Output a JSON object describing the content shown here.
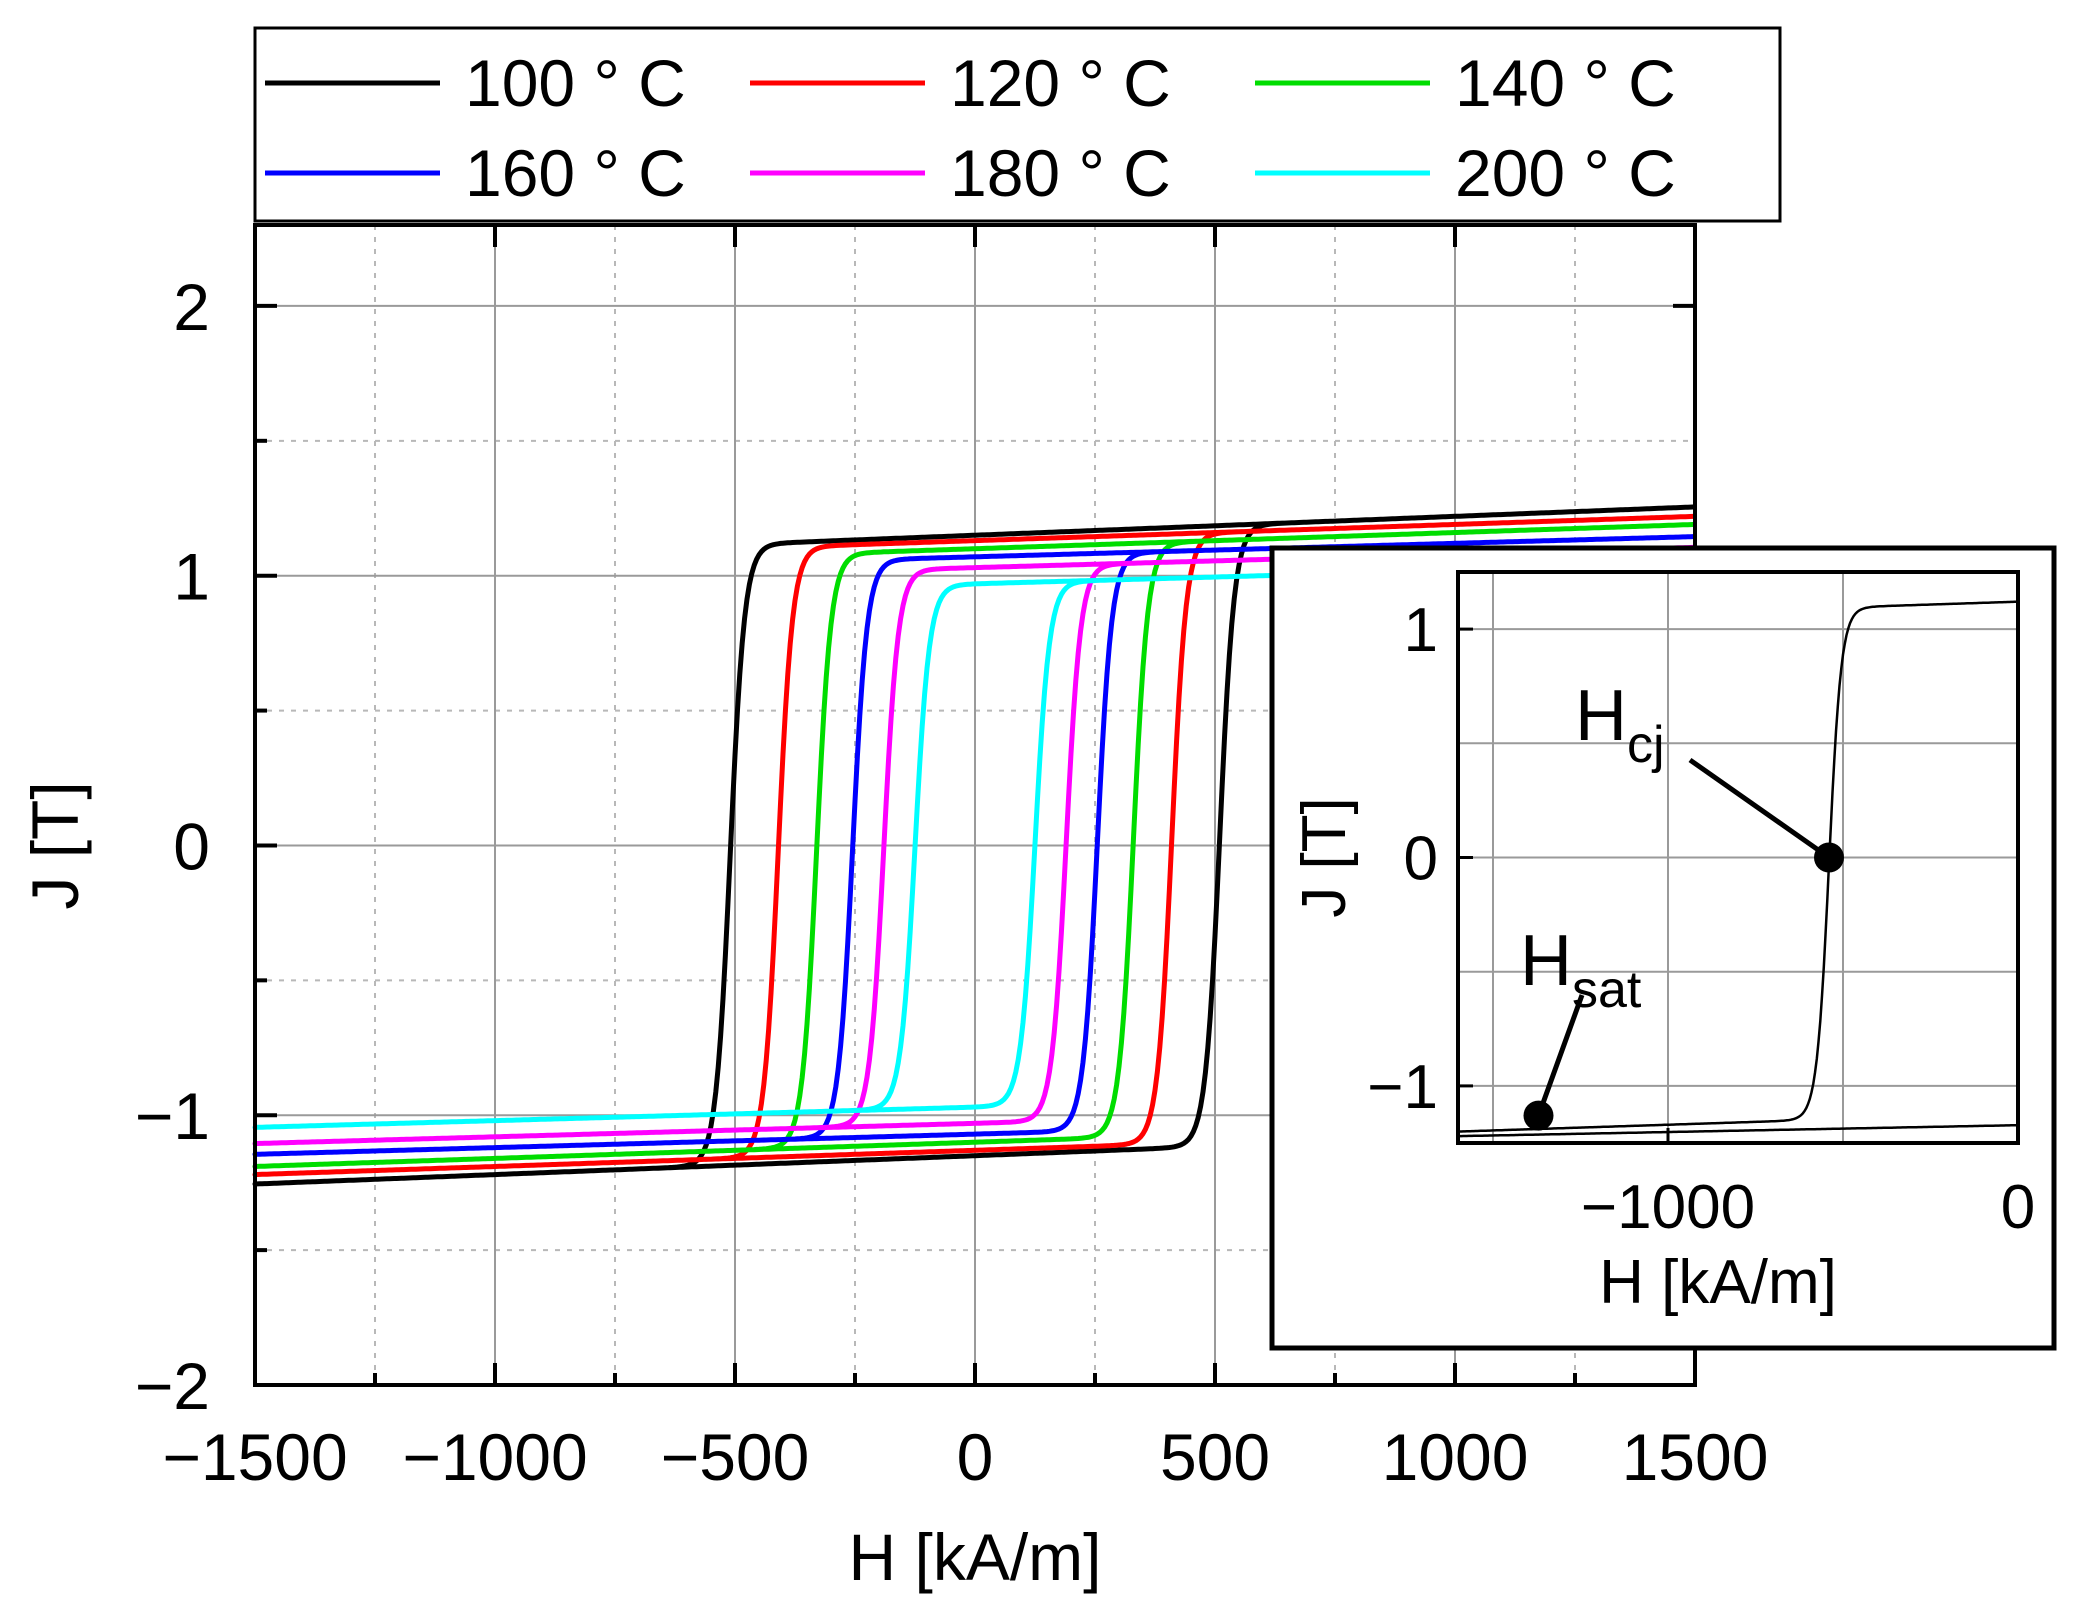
{
  "chart_data": [
    {
      "type": "line",
      "xlabel": "H [kA/m]",
      "ylabel": "J [T]",
      "xlim": [
        -1500,
        1500
      ],
      "ylim": [
        -2,
        2.3
      ],
      "xticks": [
        -1500,
        -1000,
        -500,
        0,
        500,
        1000,
        1500
      ],
      "xtick_labels": [
        "−1500",
        "−1000",
        "−500",
        "0",
        "500",
        "1000",
        "1500"
      ],
      "yticks": [
        -2,
        -1,
        0,
        1,
        2
      ],
      "ytick_labels": [
        "−2",
        "−1",
        "0",
        "1",
        "2"
      ],
      "grid": true,
      "legend_position": "top",
      "series": [
        {
          "name": "100 ° C",
          "color": "#000000",
          "hc": 510,
          "js": 1.15,
          "slope": 7e-05,
          "width": 30
        },
        {
          "name": "120 ° C",
          "color": "#ff0000",
          "hc": 410,
          "js": 1.13,
          "slope": 6e-05,
          "width": 30
        },
        {
          "name": "140 ° C",
          "color": "#00dd00",
          "hc": 330,
          "js": 1.1,
          "slope": 6e-05,
          "width": 30
        },
        {
          "name": "160 ° C",
          "color": "#0000ff",
          "hc": 255,
          "js": 1.07,
          "slope": 5e-05,
          "width": 30
        },
        {
          "name": "180 ° C",
          "color": "#ff00ff",
          "hc": 190,
          "js": 1.03,
          "slope": 5e-05,
          "width": 30
        },
        {
          "name": "200 ° C",
          "color": "#00ffff",
          "hc": 125,
          "js": 0.97,
          "slope": 5e-05,
          "width": 30
        }
      ]
    },
    {
      "type": "line",
      "inset": true,
      "xlabel": "H [kA/m]",
      "ylabel": "J [T]",
      "xlim": [
        -1600,
        0
      ],
      "ylim": [
        -1.25,
        1.25
      ],
      "xticks": [
        -1000,
        0
      ],
      "xtick_labels": [
        "−1000",
        "0"
      ],
      "yticks": [
        -1,
        0,
        1
      ],
      "ytick_labels": [
        "−1",
        "0",
        "1"
      ],
      "grid": true,
      "annotations": [
        {
          "main": "H",
          "sub": "cj",
          "x": -540,
          "y": 0
        },
        {
          "main": "H",
          "sub": "sat",
          "x": -1370,
          "y": -1.13
        }
      ]
    }
  ]
}
